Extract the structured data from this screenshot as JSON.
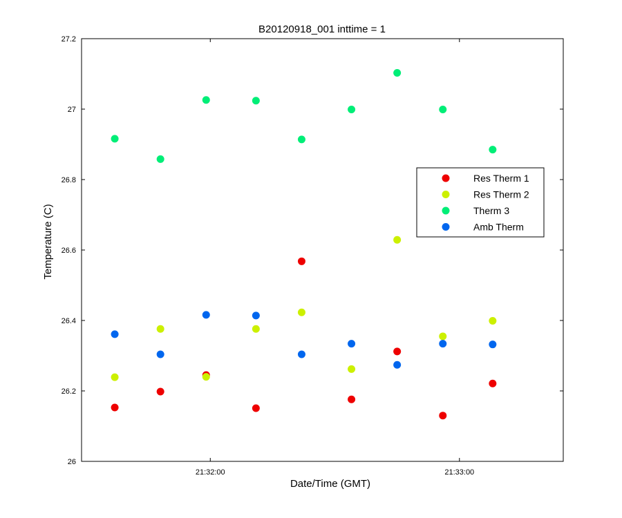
{
  "chart_data": {
    "type": "scatter",
    "title": "B20120918_001 inttime = 1",
    "xlabel": "Date/Time (GMT)",
    "ylabel": "Temperature (C)",
    "x_axis_kind": "time",
    "xlim": [
      "21:31:29",
      "21:33:25"
    ],
    "ylim": [
      26,
      27.2
    ],
    "xticks": [
      "21:32:00",
      "21:33:00"
    ],
    "yticks": [
      "26",
      "26.2",
      "26.4",
      "26.6",
      "26.8",
      "27",
      "27.2"
    ],
    "grid": false,
    "legend_position": "right",
    "x": [
      "21:31:37",
      "21:31:48",
      "21:31:59",
      "21:32:11",
      "21:32:22",
      "21:32:34",
      "21:32:45",
      "21:32:56",
      "21:33:08"
    ],
    "series": [
      {
        "name": "Res Therm 1",
        "color": "#ee0000",
        "values": [
          26.153,
          26.198,
          26.245,
          26.151,
          26.568,
          26.176,
          26.312,
          26.13,
          26.221
        ]
      },
      {
        "name": "Res Therm 2",
        "color": "#ccf000",
        "values": [
          26.239,
          26.376,
          26.24,
          26.376,
          26.423,
          26.262,
          26.629,
          26.355,
          26.399
        ]
      },
      {
        "name": "Therm 3",
        "color": "#00ee77",
        "values": [
          26.916,
          26.858,
          27.026,
          27.024,
          26.914,
          26.999,
          27.103,
          26.999,
          26.885
        ]
      },
      {
        "name": "Amb Therm",
        "color": "#0066ee",
        "values": [
          26.361,
          26.304,
          26.416,
          26.414,
          26.304,
          26.334,
          26.274,
          26.334,
          26.332
        ]
      }
    ]
  }
}
